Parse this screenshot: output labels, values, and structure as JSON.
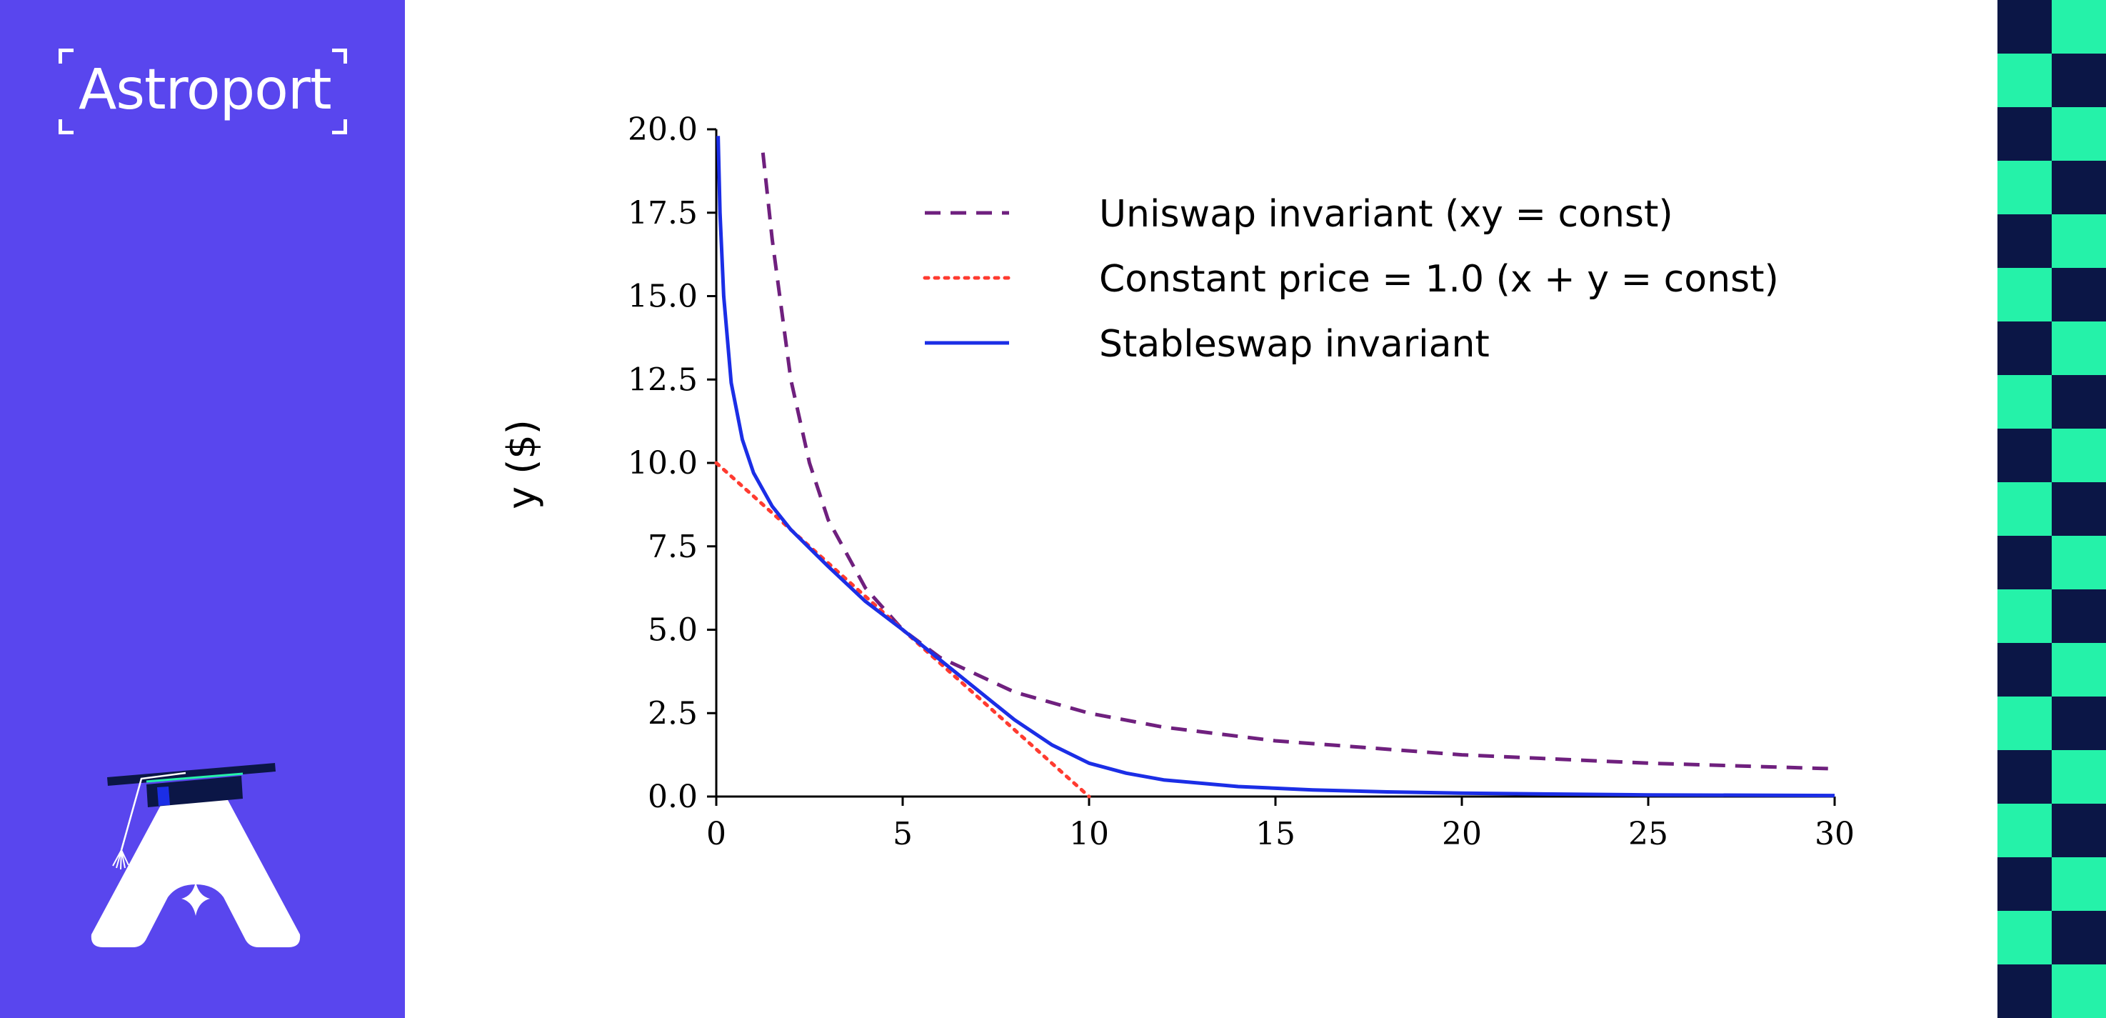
{
  "brand": {
    "name": "Astroport"
  },
  "colors": {
    "panel": "#5946ee",
    "checker_dark": "#0b1646",
    "checker_light": "#25f2a9",
    "uniswap": "#6f207e",
    "constant_price": "#ff3b30",
    "stableswap": "#1b2ee6"
  },
  "icons": {
    "mascot": "graduation-cap-a-icon",
    "star": "sparkle-star-icon"
  },
  "chart_data": {
    "type": "line",
    "title": "",
    "xlabel": "",
    "ylabel": "y ($)",
    "xlim": [
      0,
      30
    ],
    "ylim": [
      0,
      20
    ],
    "x_ticks": [
      0,
      5,
      10,
      15,
      20,
      25,
      30
    ],
    "y_ticks": [
      0.0,
      2.5,
      5.0,
      7.5,
      10.0,
      12.5,
      15.0,
      17.5,
      20.0
    ],
    "x_tick_labels": [
      "0",
      "5",
      "10",
      "15",
      "20",
      "25",
      "30"
    ],
    "y_tick_labels": [
      "0.0",
      "2.5",
      "5.0",
      "7.5",
      "10.0",
      "12.5",
      "15.0",
      "17.5",
      "20.0"
    ],
    "grid": false,
    "legend_position": "top-right",
    "series": [
      {
        "name": "Uniswap invariant (xy = const)",
        "style": "dashed",
        "color": "#6f207e",
        "x": [
          1.25,
          1.5,
          2,
          2.5,
          3,
          4,
          5,
          6,
          8,
          10,
          12,
          15,
          20,
          25,
          30
        ],
        "y": [
          19.3,
          16.7,
          12.5,
          10.0,
          8.3,
          6.25,
          5.0,
          4.17,
          3.13,
          2.5,
          2.08,
          1.67,
          1.25,
          1.0,
          0.83
        ]
      },
      {
        "name": "Constant price = 1.0 (x + y = const)",
        "style": "dotted",
        "color": "#ff3b30",
        "x": [
          0,
          10
        ],
        "y": [
          10,
          0
        ]
      },
      {
        "name": "Stableswap invariant",
        "style": "solid",
        "color": "#1b2ee6",
        "x": [
          0.05,
          0.1,
          0.2,
          0.4,
          0.7,
          1,
          1.5,
          2,
          3,
          4,
          5,
          6,
          7,
          8,
          9,
          10,
          11,
          12,
          14,
          16,
          18,
          20,
          25,
          30
        ],
        "y": [
          19.8,
          17.5,
          15.0,
          12.4,
          10.7,
          9.7,
          8.7,
          8.0,
          6.9,
          5.85,
          5.0,
          4.1,
          3.2,
          2.3,
          1.55,
          1.0,
          0.7,
          0.5,
          0.3,
          0.2,
          0.14,
          0.1,
          0.05,
          0.03
        ]
      }
    ]
  }
}
